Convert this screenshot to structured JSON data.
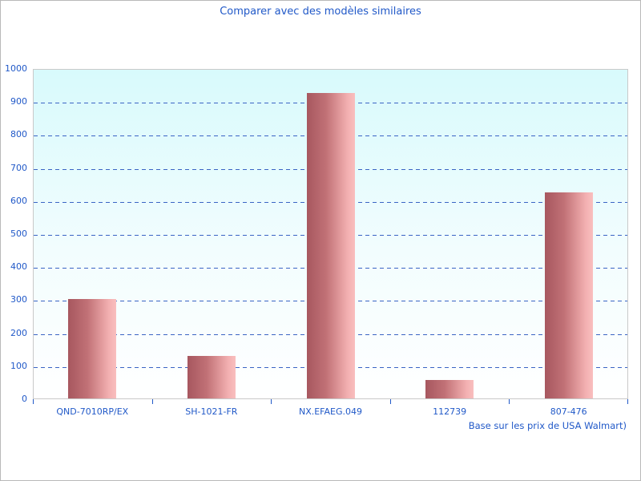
{
  "chart_data": {
    "type": "bar",
    "title": "Comparer avec des modèles similaires",
    "categories": [
      "QND-7010RP/EX",
      "SH-1021-FR",
      "NX.EFAEG.049",
      "112739",
      "807-476"
    ],
    "values": [
      300,
      128,
      925,
      55,
      625
    ],
    "xlabel": "",
    "ylabel": "",
    "ylim": [
      0,
      1000
    ],
    "y_tick_step": 100,
    "y_tick_labels": [
      "0",
      "100",
      "200",
      "300",
      "400",
      "500",
      "600",
      "700",
      "800",
      "900",
      "1000"
    ],
    "grid": "horizontal-dashed",
    "legend_position": "none",
    "footnote": "Base sur les prix de USA Walmart)",
    "colors": {
      "text_blue": "#2159c8",
      "gridline_blue": "#3a64c4",
      "bar_gradient_dark": "#a7575f",
      "bar_gradient_light": "#f9bfbf",
      "plot_background_top": "#d8fafc",
      "plot_background_bottom": "#ffffff",
      "plot_border": "#c9c9c9",
      "page_border": "#b9b9b9"
    }
  }
}
